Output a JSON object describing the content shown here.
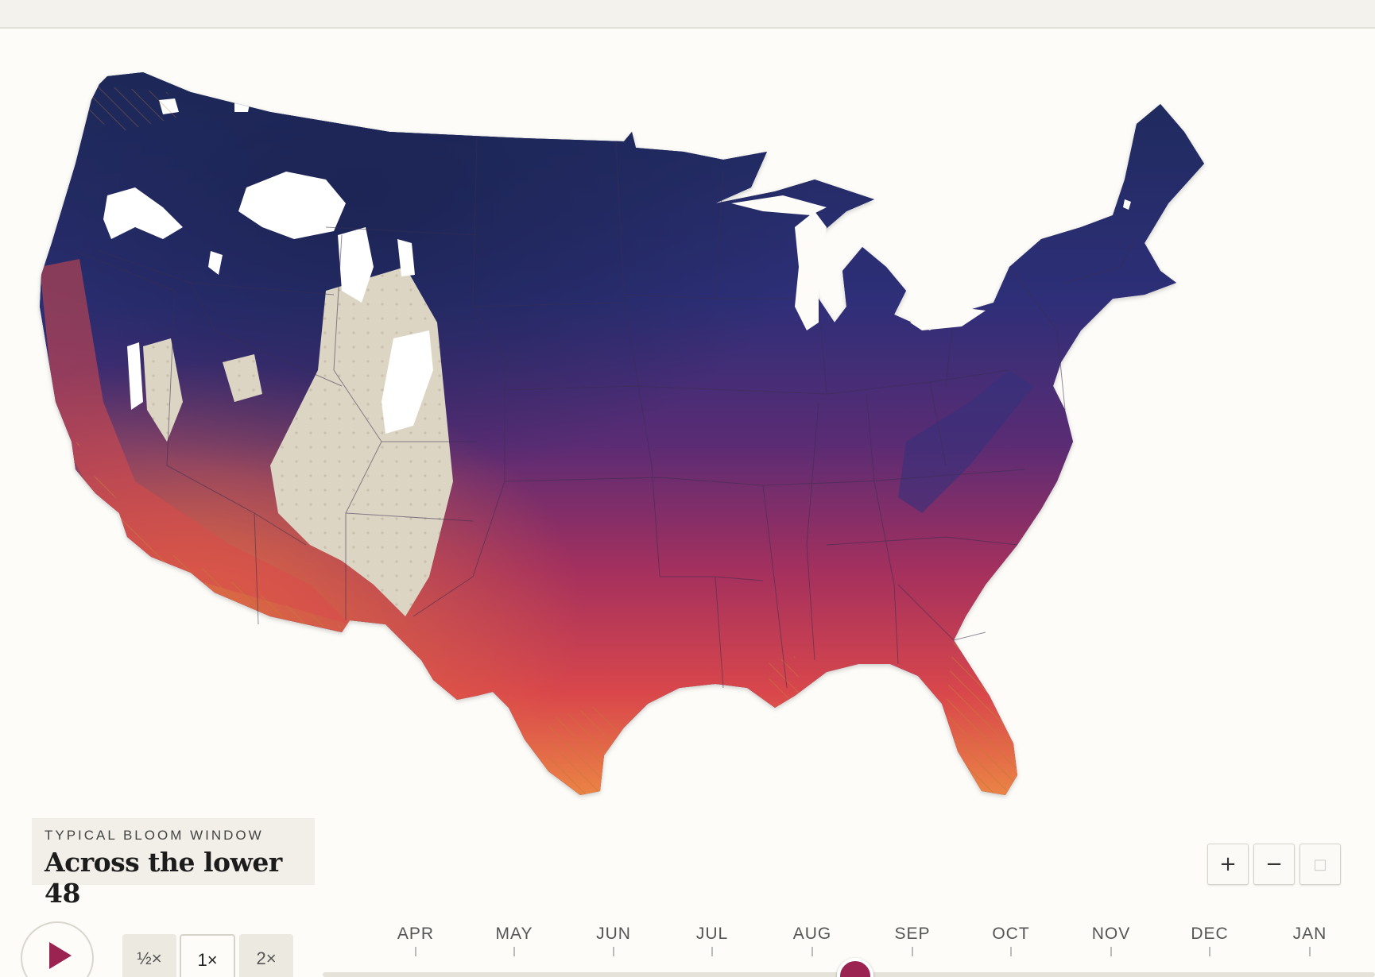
{
  "caption": {
    "kicker": "TYPICAL BLOOM WINDOW",
    "title": "Across the lower 48"
  },
  "zoom": {
    "zoom_in_label": "+",
    "zoom_out_label": "−",
    "reset_label": "□"
  },
  "playback": {
    "play_icon": "play-icon",
    "speeds": [
      "½×",
      "1×",
      "2×"
    ],
    "selected_speed": "1×"
  },
  "timeline": {
    "months": [
      "APR",
      "MAY",
      "JUN",
      "JUL",
      "AUG",
      "SEP",
      "OCT",
      "NOV",
      "DEC",
      "JAN"
    ],
    "current_position_fraction": 0.48
  },
  "map": {
    "colors": {
      "early": "#f0a040",
      "mid_early": "#d2424c",
      "mid": "#7b2a66",
      "mid_late": "#3b2f7a",
      "late": "#1f2a5c",
      "no_data": "#ffffff",
      "other": "#dcd4c3"
    }
  },
  "accent_color": "#9a2352"
}
